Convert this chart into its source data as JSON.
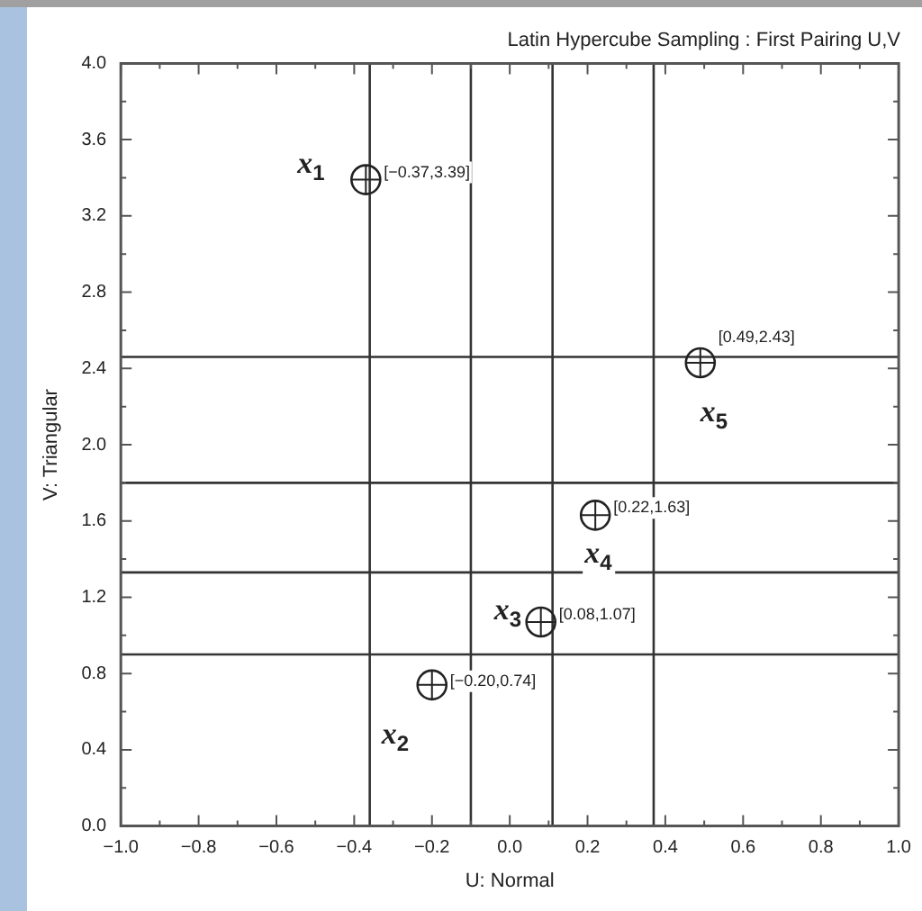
{
  "chart_data": {
    "type": "scatter",
    "title": "Latin Hypercube Sampling : First Pairing U,V",
    "xlabel": "U: Normal",
    "ylabel": "V: Triangular",
    "x": [
      -0.37,
      -0.2,
      0.08,
      0.22,
      0.49
    ],
    "values": [
      3.39,
      0.74,
      1.07,
      1.63,
      2.43
    ],
    "value_labels": [
      "[−0.37,3.39]",
      "[−0.20,0.74]",
      "[0.08,1.07]",
      "[0.22,1.63]",
      "[0.49,2.43]"
    ],
    "color": "#222222",
    "marker": "circle",
    "grid": false,
    "legend": false,
    "xlim": [
      -1,
      1
    ],
    "xticks": [
      {
        "value": -1,
        "label": "−1.0"
      },
      {
        "value": -0.8,
        "label": "−0.8"
      },
      {
        "value": -0.6,
        "label": "−0.6"
      },
      {
        "value": -0.4,
        "label": "−0.4"
      },
      {
        "value": -0.2,
        "label": "−0.2"
      },
      {
        "value": 0,
        "label": "0.0"
      },
      0.2,
      0.4,
      0.6,
      0.8,
      {
        "value": 1,
        "label": "1.0"
      }
    ],
    "ylim": [
      0,
      4
    ],
    "yticks": [
      {
        "value": 0,
        "label": "0.0"
      },
      0.4,
      0.8,
      1.2,
      1.6,
      {
        "value": 2,
        "label": "2.0"
      },
      2.4,
      2.8,
      3.2,
      3.6,
      {
        "value": 4,
        "label": "4.0"
      }
    ],
    "ref_lines": [
      {
        "axis": "x",
        "value": -0.36,
        "color": "#333333"
      },
      {
        "axis": "x",
        "value": -0.1,
        "color": "#333333"
      },
      {
        "axis": "x",
        "value": 0.11,
        "color": "#333333"
      },
      {
        "axis": "x",
        "value": 0.37,
        "color": "#333333"
      },
      {
        "axis": "y",
        "value": 0.9,
        "color": "#333333"
      },
      {
        "axis": "y",
        "value": 1.33,
        "color": "#333333"
      },
      {
        "axis": "y",
        "value": 1.8,
        "color": "#333333"
      },
      {
        "axis": "y",
        "value": 2.46,
        "color": "#333333"
      }
    ],
    "annotations": [
      {
        "text": "x$_{1}$",
        "x": -0.37,
        "y": 3.39
      },
      {
        "text": "x$_{2}$",
        "x": -0.2,
        "y": 0.74
      },
      {
        "text": "x$_{3}$",
        "x": 0.08,
        "y": 1.07
      },
      {
        "text": "x$_{4}$",
        "x": 0.22,
        "y": 1.63
      },
      {
        "text": "x$_{5}$",
        "x": 0.49,
        "y": 2.43
      }
    ]
  }
}
